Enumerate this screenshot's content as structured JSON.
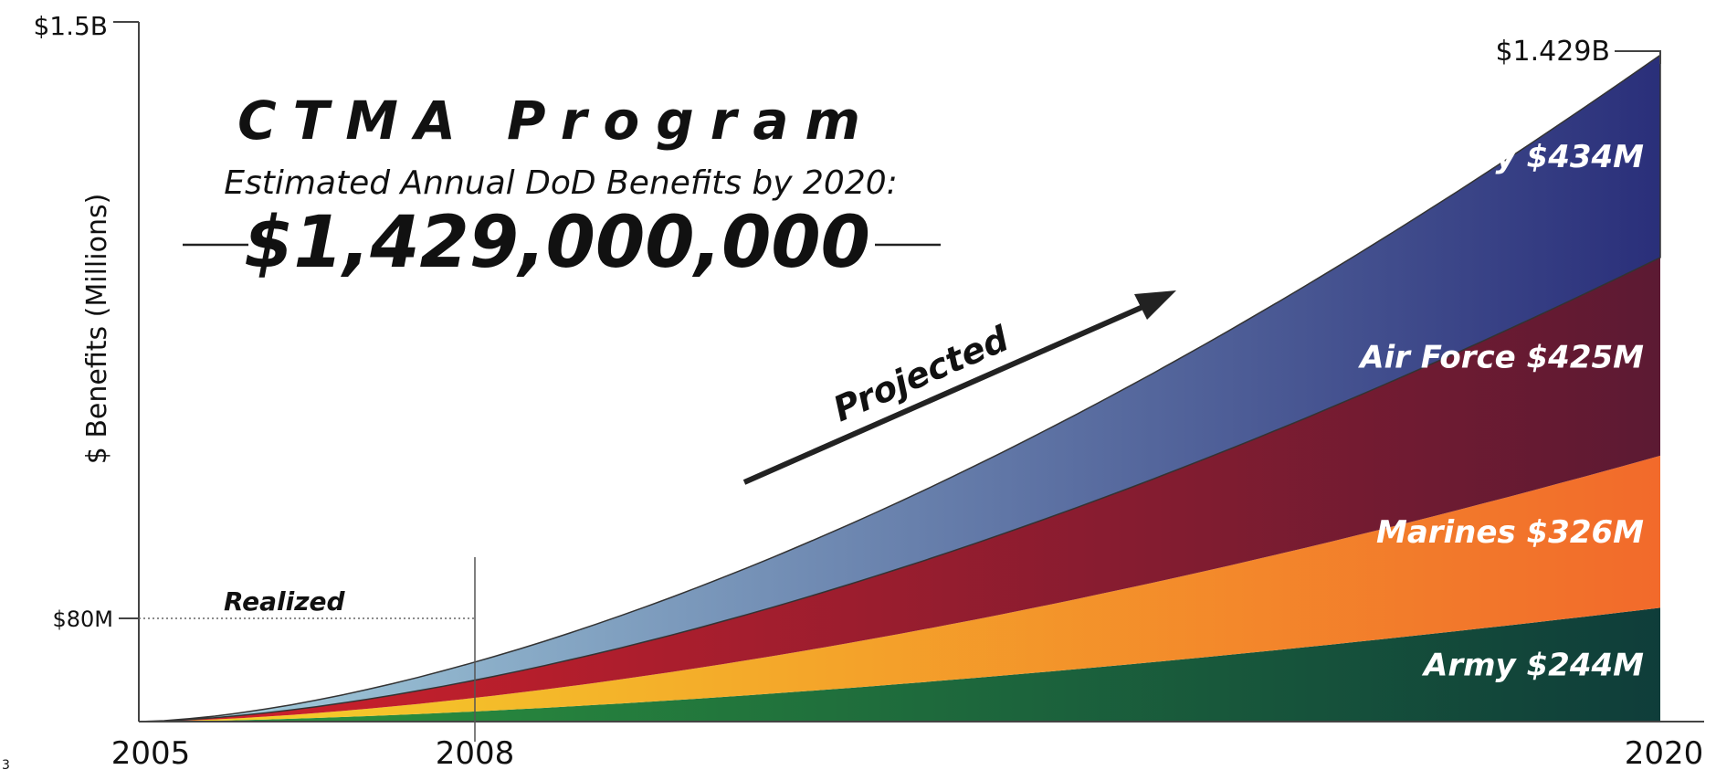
{
  "chart_data": {
    "type": "area",
    "stacked": true,
    "title": "CTMA Program",
    "subtitle": "Estimated Annual DoD Benefits by 2020:",
    "headline_value": "$1,429,000,000",
    "ylabel": "$ Benefits (Millions)",
    "xlabel": "",
    "x_ticks": [
      "2005",
      "2008",
      "2020"
    ],
    "x_values": [
      2005,
      2008,
      2020
    ],
    "ylim": [
      0,
      1500
    ],
    "xlim": [
      2005,
      2020
    ],
    "y_ticks": [
      {
        "value": 1500,
        "label": "$1.5B"
      },
      {
        "value": 80,
        "label": "$80M"
      }
    ],
    "top_value_label": "$1.429B",
    "realized_label": "Realized",
    "projected_label": "Projected",
    "page_number": "3",
    "series": [
      {
        "name": "Army",
        "label": "Army $244M",
        "values": [
          0,
          17,
          244
        ],
        "colors": [
          "#2e9a3e",
          "#0f3d3a"
        ]
      },
      {
        "name": "Marines",
        "label": "Marines $326M",
        "values": [
          0,
          23,
          326
        ],
        "colors": [
          "#f5d52a",
          "#f26a2b"
        ]
      },
      {
        "name": "Air Force",
        "label": "Air Force $425M",
        "values": [
          0,
          24,
          425
        ],
        "colors": [
          "#d4202a",
          "#5c1a33"
        ]
      },
      {
        "name": "Navy",
        "label": "Navy $434M",
        "values": [
          0,
          16,
          434
        ],
        "colors": [
          "#a8d4e0",
          "#2a2f7a"
        ]
      }
    ]
  }
}
